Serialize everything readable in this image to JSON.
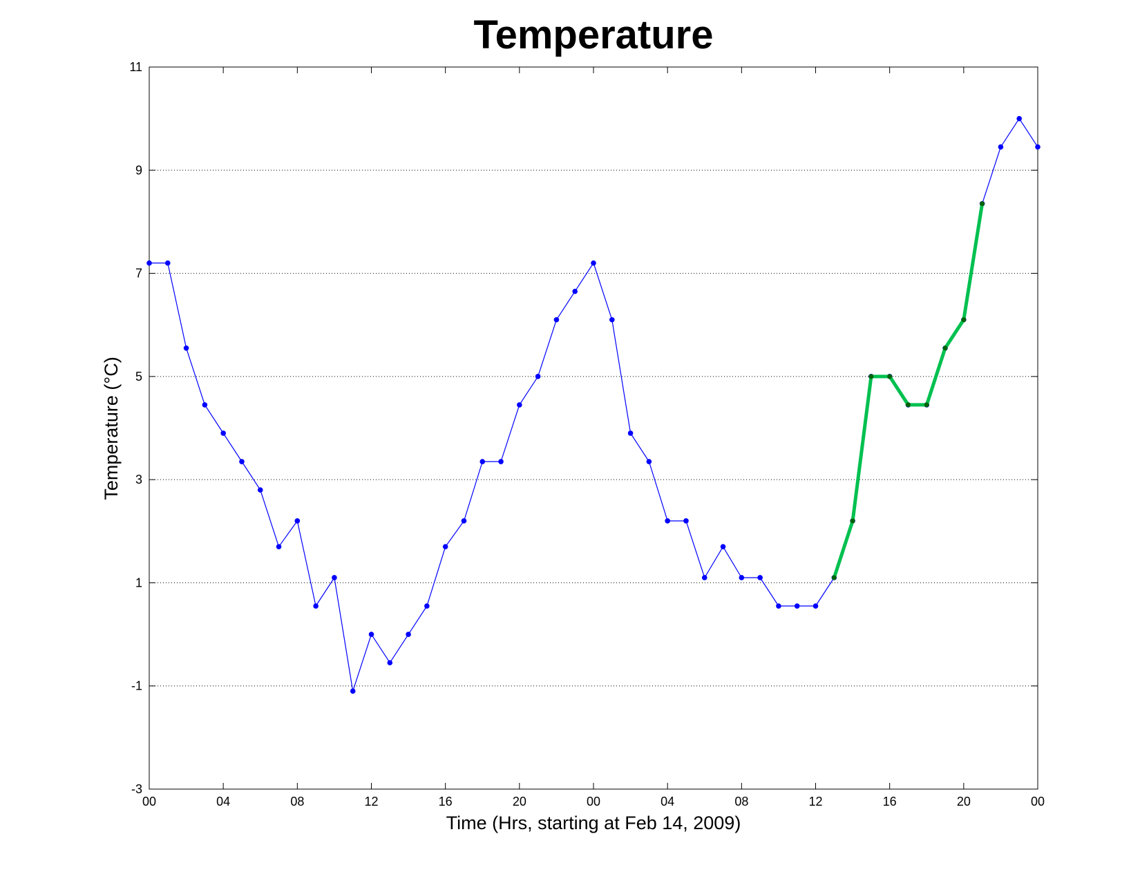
{
  "chart_data": {
    "type": "line",
    "title": "Temperature",
    "xlabel": "Time (Hrs, starting at Feb 14, 2009)",
    "ylabel": "Temperature (°C)",
    "xlim": [
      0,
      48
    ],
    "ylim": [
      -3,
      11
    ],
    "yticks": [
      -3,
      -1,
      1,
      3,
      5,
      7,
      9,
      11
    ],
    "ytick_labels": [
      "-3",
      "-1",
      "1",
      "3",
      "5",
      "7",
      "9",
      "11"
    ],
    "xticks": [
      0,
      4,
      8,
      12,
      16,
      20,
      24,
      28,
      32,
      36,
      40,
      44,
      48
    ],
    "xtick_labels": [
      "00",
      "04",
      "08",
      "12",
      "16",
      "20",
      "00",
      "04",
      "08",
      "12",
      "16",
      "20",
      "00"
    ],
    "grid": "horizontal dotted",
    "series": [
      {
        "color": "#0000ff",
        "line_style": "thin",
        "x": [
          0,
          1,
          2,
          3,
          4,
          5,
          6,
          7,
          8,
          9,
          10,
          11,
          12,
          13,
          14,
          15,
          16,
          17,
          18,
          19,
          20,
          21,
          22,
          23,
          24,
          25,
          26,
          27,
          28,
          29,
          30,
          31,
          32,
          33,
          34,
          35,
          36,
          37,
          38,
          39,
          40,
          41,
          42,
          43,
          44,
          45,
          46,
          47,
          48
        ],
        "y": [
          7.2,
          7.2,
          5.55,
          4.45,
          3.9,
          3.35,
          2.8,
          1.7,
          2.2,
          0.55,
          1.1,
          -1.1,
          0.0,
          -0.55,
          0.0,
          0.55,
          1.7,
          2.2,
          3.35,
          3.35,
          4.45,
          5.0,
          6.1,
          6.65,
          7.2,
          6.1,
          3.9,
          3.35,
          2.2,
          2.2,
          1.1,
          1.7,
          1.1,
          1.1,
          0.55,
          0.55,
          0.55,
          1.1,
          2.2,
          5.0,
          5.0,
          4.45,
          4.45,
          5.55,
          6.1,
          8.35,
          9.45,
          10.0,
          9.45
        ]
      },
      {
        "color": "#00c050",
        "line_style": "thick",
        "marker_color": "#006400",
        "x": [
          37,
          38,
          39,
          40,
          41,
          42,
          43,
          44,
          45
        ],
        "y": [
          1.1,
          2.2,
          5.0,
          5.0,
          4.45,
          4.45,
          5.55,
          6.1,
          8.35
        ]
      }
    ]
  }
}
